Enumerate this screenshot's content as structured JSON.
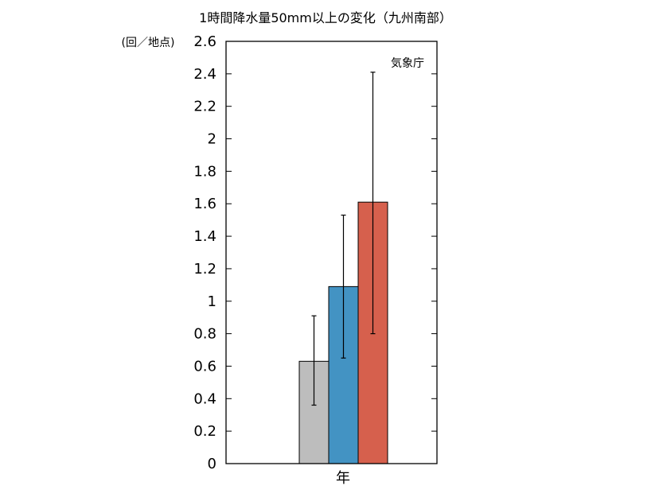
{
  "chart_data": {
    "type": "bar",
    "title": "1時間降水量50mm以上の変化（九州南部）",
    "ylabel": "(回／地点)",
    "xlabel": "年",
    "annotation": "気象庁",
    "ylim": [
      0,
      2.6
    ],
    "yticks": [
      0,
      0.2,
      0.4,
      0.6,
      0.8,
      1,
      1.2,
      1.4,
      1.6,
      1.8,
      2,
      2.2,
      2.4,
      2.6
    ],
    "ytick_labels": [
      "0",
      "0.2",
      "0.4",
      "0.6",
      "0.8",
      "1",
      "1.2",
      "1.4",
      "1.6",
      "1.8",
      "2",
      "2.2",
      "2.4",
      "2.6"
    ],
    "grid": false,
    "series": [
      {
        "value": 0.63,
        "error_low": 0.36,
        "error_high": 0.91,
        "color": "#bdbdbd"
      },
      {
        "value": 1.09,
        "error_low": 0.65,
        "error_high": 1.53,
        "color": "#4393c3"
      },
      {
        "value": 1.61,
        "error_low": 0.8,
        "error_high": 2.41,
        "color": "#d6604d"
      }
    ]
  }
}
